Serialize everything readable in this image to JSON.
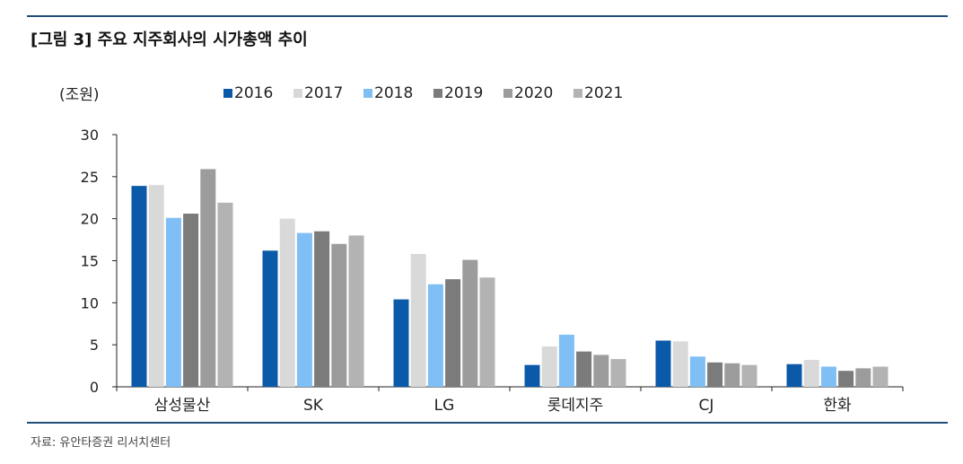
{
  "title": "[그림 3] 주요 지주회사의 시가총액 추이",
  "source": "자료: 유안타증권 리서치센터",
  "chart_data": {
    "type": "bar",
    "unit_label": "(조원)",
    "categories": [
      "삼성물산",
      "SK",
      "LG",
      "롯데지주",
      "CJ",
      "한화"
    ],
    "series": [
      {
        "name": "2016",
        "color": "#0b5aa9",
        "values": [
          23.9,
          16.2,
          10.4,
          2.6,
          5.5,
          2.7
        ]
      },
      {
        "name": "2017",
        "color": "#d9d9d9",
        "values": [
          24.0,
          20.0,
          15.8,
          4.8,
          5.4,
          3.2
        ]
      },
      {
        "name": "2018",
        "color": "#7fbff5",
        "values": [
          20.1,
          18.3,
          12.2,
          6.2,
          3.6,
          2.4
        ]
      },
      {
        "name": "2019",
        "color": "#7b7b7b",
        "values": [
          20.6,
          18.5,
          12.8,
          4.2,
          2.9,
          1.9
        ]
      },
      {
        "name": "2020",
        "color": "#9c9c9c",
        "values": [
          25.9,
          17.0,
          15.1,
          3.8,
          2.8,
          2.2
        ]
      },
      {
        "name": "2021",
        "color": "#b3b3b3",
        "values": [
          21.9,
          18.0,
          13.0,
          3.3,
          2.6,
          2.4
        ]
      }
    ],
    "y_ticks": [
      "0",
      "5",
      "10",
      "15",
      "20",
      "25",
      "30"
    ],
    "ylim": [
      0,
      30
    ],
    "grid": false,
    "legend_position": "top"
  }
}
